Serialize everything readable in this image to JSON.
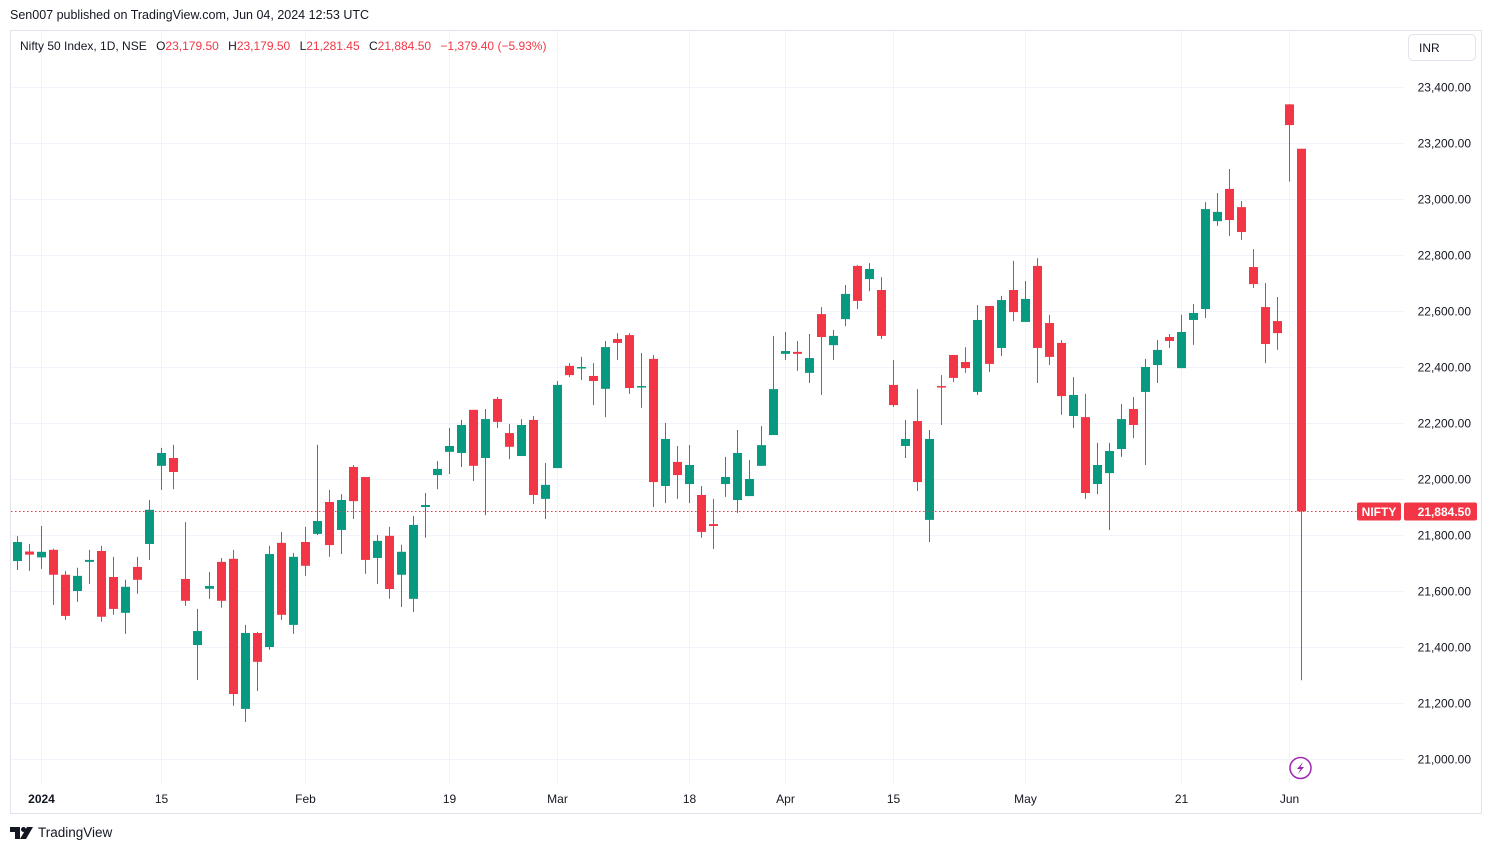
{
  "header": {
    "published": "Sen007 published on TradingView.com, Jun 04, 2024 12:53 UTC"
  },
  "legend": {
    "title": "Nifty 50 Index, 1D, NSE",
    "o_label": "O",
    "o": "23,179.50",
    "h_label": "H",
    "h": "23,179.50",
    "l_label": "L",
    "l": "21,281.45",
    "c_label": "C",
    "c": "21,884.50",
    "change": "−1,379.40 (−5.93%)"
  },
  "currency_button": "INR",
  "last_price_label": {
    "symbol": "NIFTY",
    "price": "21,884.50"
  },
  "footer": {
    "brand": "TradingView"
  },
  "colors": {
    "up": "#089981",
    "down": "#f23645",
    "grid": "#f0f3fa",
    "event": "#9c27b0"
  },
  "chart_data": {
    "type": "candlestick",
    "title": "Nifty 50 Index, 1D, NSE",
    "ylim": [
      20920,
      23460
    ],
    "last_price": 21884.5,
    "y_ticks": [
      "21,000.00",
      "21,200.00",
      "21,400.00",
      "21,600.00",
      "21,800.00",
      "22,000.00",
      "22,200.00",
      "22,400.00",
      "22,600.00",
      "22,800.00",
      "23,000.00",
      "23,200.00",
      "23,400.00"
    ],
    "y_tick_values": [
      21000,
      21200,
      21400,
      21600,
      21800,
      22000,
      22200,
      22400,
      22600,
      22800,
      23000,
      23200,
      23400
    ],
    "x_ticks": [
      {
        "label": "2024",
        "index": 2,
        "bold": true
      },
      {
        "label": "15",
        "index": 12
      },
      {
        "label": "Feb",
        "index": 24
      },
      {
        "label": "19",
        "index": 36
      },
      {
        "label": "Mar",
        "index": 45
      },
      {
        "label": "18",
        "index": 56
      },
      {
        "label": "Apr",
        "index": 64
      },
      {
        "label": "15",
        "index": 73
      },
      {
        "label": "May",
        "index": 84
      },
      {
        "label": "21",
        "index": 97
      },
      {
        "label": "Jun",
        "index": 106
      }
    ],
    "ohlc_fields": [
      "open",
      "high",
      "low",
      "close"
    ],
    "candles": [
      [
        21707,
        21796,
        21675,
        21775
      ],
      [
        21741,
        21768,
        21672,
        21730
      ],
      [
        21720,
        21832,
        21679,
        21740
      ],
      [
        21747,
        21751,
        21550,
        21658
      ],
      [
        21658,
        21672,
        21497,
        21511
      ],
      [
        21600,
        21683,
        21561,
        21654
      ],
      [
        21704,
        21747,
        21625,
        21711
      ],
      [
        21743,
        21761,
        21490,
        21508
      ],
      [
        21650,
        21722,
        21515,
        21536
      ],
      [
        21522,
        21640,
        21447,
        21615
      ],
      [
        21686,
        21722,
        21590,
        21640
      ],
      [
        21768,
        21925,
        21711,
        21890
      ],
      [
        22047,
        22111,
        21961,
        22093
      ],
      [
        22075,
        22122,
        21964,
        22025
      ],
      [
        21643,
        21846,
        21547,
        21565
      ],
      [
        21407,
        21536,
        21282,
        21457
      ],
      [
        21608,
        21668,
        21572,
        21618
      ],
      [
        21704,
        21718,
        21540,
        21565
      ],
      [
        21715,
        21747,
        21190,
        21232
      ],
      [
        21179,
        21479,
        21132,
        21450
      ],
      [
        21450,
        21454,
        21243,
        21347
      ],
      [
        21400,
        21761,
        21390,
        21732
      ],
      [
        21772,
        21811,
        21497,
        21515
      ],
      [
        21479,
        21736,
        21447,
        21722
      ],
      [
        21775,
        21829,
        21654,
        21690
      ],
      [
        21804,
        22122,
        21800,
        21850
      ],
      [
        21918,
        21961,
        21722,
        21764
      ],
      [
        21818,
        21946,
        21732,
        21925
      ],
      [
        22043,
        22050,
        21857,
        21921
      ],
      [
        22007,
        22007,
        21661,
        21711
      ],
      [
        21718,
        21800,
        21625,
        21779
      ],
      [
        21797,
        21829,
        21572,
        21607
      ],
      [
        21658,
        21765,
        21543,
        21740
      ],
      [
        21572,
        21868,
        21525,
        21836
      ],
      [
        21900,
        21950,
        21790,
        21907
      ],
      [
        22014,
        22064,
        21964,
        22036
      ],
      [
        22097,
        22182,
        22018,
        22118
      ],
      [
        22093,
        22211,
        22043,
        22193
      ],
      [
        22247,
        22247,
        21993,
        22047
      ],
      [
        22075,
        22250,
        21871,
        22214
      ],
      [
        22286,
        22293,
        22182,
        22204
      ],
      [
        22164,
        22197,
        22071,
        22115
      ],
      [
        22082,
        22214,
        22082,
        22193
      ],
      [
        22211,
        22225,
        21911,
        21943
      ],
      [
        21929,
        22057,
        21857,
        21979
      ],
      [
        22039,
        22350,
        22039,
        22336
      ],
      [
        22404,
        22414,
        22364,
        22371
      ],
      [
        22397,
        22436,
        22354,
        22400
      ],
      [
        22368,
        22414,
        22264,
        22350
      ],
      [
        22322,
        22493,
        22221,
        22471
      ],
      [
        22500,
        22521,
        22425,
        22486
      ],
      [
        22514,
        22521,
        22304,
        22325
      ],
      [
        22328,
        22450,
        22254,
        22332
      ],
      [
        22429,
        22443,
        21900,
        21989
      ],
      [
        21975,
        22200,
        21914,
        22143
      ],
      [
        22061,
        22118,
        21929,
        22014
      ],
      [
        21982,
        22121,
        21914,
        22050
      ],
      [
        21943,
        21975,
        21790,
        21811
      ],
      [
        21839,
        21929,
        21750,
        21832
      ],
      [
        21982,
        22079,
        21936,
        22007
      ],
      [
        21925,
        22175,
        21879,
        22093
      ],
      [
        21939,
        22068,
        21939,
        22000
      ],
      [
        22047,
        22189,
        22047,
        22121
      ],
      [
        22157,
        22511,
        22157,
        22321
      ],
      [
        22447,
        22525,
        22425,
        22457
      ],
      [
        22454,
        22493,
        22386,
        22447
      ],
      [
        22379,
        22518,
        22343,
        22432
      ],
      [
        22589,
        22614,
        22300,
        22507
      ],
      [
        22478,
        22532,
        22425,
        22511
      ],
      [
        22571,
        22693,
        22546,
        22661
      ],
      [
        22761,
        22764,
        22607,
        22636
      ],
      [
        22714,
        22771,
        22671,
        22750
      ],
      [
        22675,
        22721,
        22500,
        22511
      ],
      [
        22336,
        22425,
        22257,
        22264
      ],
      [
        22118,
        22211,
        22075,
        22143
      ],
      [
        22207,
        22321,
        21957,
        21989
      ],
      [
        21854,
        22175,
        21775,
        22143
      ],
      [
        22332,
        22371,
        22193,
        22329
      ],
      [
        22443,
        22443,
        22346,
        22361
      ],
      [
        22418,
        22471,
        22379,
        22396
      ],
      [
        22311,
        22621,
        22300,
        22568
      ],
      [
        22618,
        22618,
        22382,
        22411
      ],
      [
        22468,
        22654,
        22439,
        22639
      ],
      [
        22675,
        22779,
        22564,
        22596
      ],
      [
        22561,
        22707,
        22561,
        22643
      ],
      [
        22761,
        22789,
        22343,
        22468
      ],
      [
        22557,
        22586,
        22407,
        22436
      ],
      [
        22486,
        22496,
        22229,
        22296
      ],
      [
        22225,
        22364,
        22182,
        22300
      ],
      [
        22221,
        22304,
        21929,
        21950
      ],
      [
        21982,
        22129,
        21946,
        22050
      ],
      [
        22021,
        22129,
        21818,
        22100
      ],
      [
        22107,
        22268,
        22079,
        22214
      ],
      [
        22250,
        22293,
        22146,
        22193
      ],
      [
        22311,
        22429,
        22050,
        22400
      ],
      [
        22407,
        22496,
        22343,
        22461
      ],
      [
        22507,
        22518,
        22468,
        22493
      ],
      [
        22396,
        22586,
        22396,
        22525
      ],
      [
        22568,
        22625,
        22479,
        22593
      ],
      [
        22607,
        22989,
        22575,
        22964
      ],
      [
        22921,
        23021,
        22904,
        22954
      ],
      [
        23036,
        23107,
        22868,
        22925
      ],
      [
        22971,
        22993,
        22854,
        22882
      ],
      [
        22757,
        22821,
        22682,
        22696
      ],
      [
        22614,
        22700,
        22414,
        22482
      ],
      [
        22564,
        22650,
        22461,
        22521
      ],
      [
        23338,
        23339,
        23062,
        23264
      ],
      [
        23179.5,
        23179.5,
        21281.45,
        21884.5
      ]
    ],
    "event_marker_index": 107
  }
}
